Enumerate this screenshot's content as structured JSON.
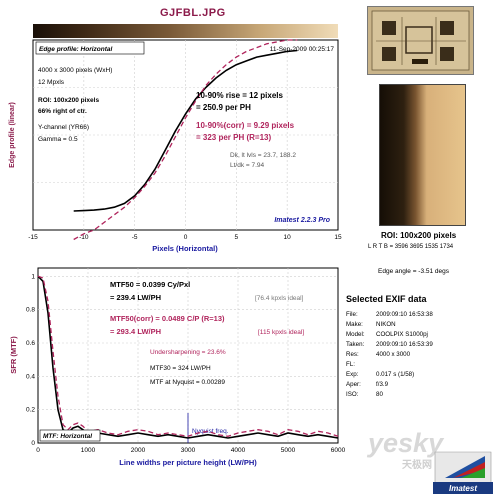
{
  "header": {
    "title": "GJFBL.JPG"
  },
  "edge_panel": {
    "box_title": "Edge profile: Horizontal",
    "timestamp": "11-Sep-2009 00:25:17",
    "image_size": "4000 x 3000 pixels (WxH)",
    "mpxls": "12 Mpxls",
    "roi": "ROI: 100x200 pixels",
    "ctr": "66% right of ctr.",
    "channel": "Y-channel (YR66)",
    "gamma": "Gamma = 0.5",
    "rise_line1": "10-90% rise = 12 pixels",
    "rise_line2": "= 250.9 per PH",
    "corr_line1": "10-90%(corr) = 9.29 pixels",
    "corr_line2": "= 323 per PH  (R=13)",
    "dk": "Dk, lt lvls = 23.7, 188.2",
    "ltdk": "Lt/dk = 7.94",
    "version": "Imatest 2.2.3 Pro",
    "ylabel": "Edge profile (linear)",
    "xlabel": "Pixels (Horizontal)",
    "xticks": [
      "-15",
      "-10",
      "-5",
      "0",
      "5",
      "10",
      "15"
    ]
  },
  "mtf_panel": {
    "mtf50_line1": "MTF50 = 0.0399 Cy/Pxl",
    "mtf50_line2": "= 239.4 LW/PH",
    "mtf50_ideal": "[76.4 kpxls ideal]",
    "mtf50c_line1": "MTF50(corr) = 0.0489 C/P  (R=13)",
    "mtf50c_line2": "= 293.4 LW/PH",
    "mtf50c_ideal": "[115 kpxls ideal]",
    "undersharp": "Undersharpening = 23.6%",
    "mtf30": "MTF30 = 324 LW/PH",
    "nyq_mtf": "MTF at Nyquist = 0.00289",
    "nyq_label": "Nyquist freq.",
    "box_label": "MTF: Horizontal",
    "ylabel": "SFR (MTF)",
    "xlabel": "Line widths per picture height (LW/PH)",
    "xticks": [
      "0",
      "1000",
      "2000",
      "3000",
      "4000",
      "5000",
      "6000"
    ],
    "yticks": [
      "1",
      "0.8",
      "0.6",
      "0.4",
      "0.2",
      "0"
    ]
  },
  "roi_info": {
    "title": "ROI: 100x200 pixels",
    "lrtb": "L R T B = 3596 3695 1535 1734",
    "edge_angle": "Edge angle = -3.51 degs"
  },
  "exif": {
    "title": "Selected EXIF data",
    "rows": [
      {
        "k": "File:",
        "v": "2009:09:10 16:53:38"
      },
      {
        "k": "Make:",
        "v": "NIKON"
      },
      {
        "k": "Model:",
        "v": "COOLPIX S1000pj"
      },
      {
        "k": "Taken:",
        "v": "2009:09:10 16:53:39"
      },
      {
        "k": "Res:",
        "v": "4000 x 3000"
      },
      {
        "k": "FL:",
        "v": ""
      },
      {
        "k": "Exp:",
        "v": "0.017 s   (1/58)"
      },
      {
        "k": "Aper:",
        "v": "f/3.9"
      },
      {
        "k": "ISO:",
        "v": "80"
      }
    ]
  },
  "watermark": {
    "text": "yesky",
    "sub": "天极网",
    "logo_text": "Imatest"
  },
  "colors": {
    "title": "#8b1a4a",
    "corr": "#b0245c",
    "blue": "#1a1aa0"
  },
  "chart_data": [
    {
      "type": "line",
      "title": "Edge profile: Horizontal",
      "xlabel": "Pixels (Horizontal)",
      "ylabel": "Edge profile (linear)",
      "xlim": [
        -15,
        15
      ],
      "ylim": [
        0,
        1
      ],
      "grid": true,
      "series": [
        {
          "name": "",
          "x": [
            -11,
            -10,
            -9,
            -8,
            -7,
            -6,
            -5,
            -4,
            -3,
            -2,
            -1,
            0,
            1,
            2,
            3,
            4,
            5,
            6,
            7,
            8,
            9,
            10,
            11
          ],
          "y": [
            0.1,
            0.102,
            0.105,
            0.11,
            0.12,
            0.14,
            0.18,
            0.24,
            0.32,
            0.42,
            0.52,
            0.61,
            0.69,
            0.75,
            0.8,
            0.84,
            0.87,
            0.89,
            0.91,
            0.92,
            0.93,
            0.94,
            0.945
          ]
        },
        {
          "name": "",
          "x": [
            -11,
            -10,
            -9,
            -8,
            -7,
            -6,
            -5,
            -4,
            -3,
            -2,
            -1,
            0,
            1,
            2,
            3,
            4,
            5,
            6,
            7,
            8,
            9,
            10,
            11
          ],
          "y": [
            -0.05,
            -0.02,
            0.0,
            0.04,
            0.08,
            0.12,
            0.17,
            0.23,
            0.3,
            0.39,
            0.49,
            0.59,
            0.68,
            0.76,
            0.82,
            0.87,
            0.91,
            0.94,
            0.96,
            0.98,
            0.99,
            1.0,
            1.0
          ]
        }
      ]
    },
    {
      "type": "line",
      "title": "MTF: Horizontal",
      "xlabel": "Line widths per picture height (LW/PH)",
      "ylabel": "SFR (MTF)",
      "xlim": [
        0,
        6000
      ],
      "ylim": [
        0,
        1.05
      ],
      "grid": true,
      "series": [
        {
          "name": "",
          "x": [
            0,
            100,
            200,
            300,
            400,
            500,
            600,
            700,
            800,
            900,
            1000,
            1200,
            1400,
            1600,
            1800,
            2000,
            2200,
            2400,
            2600,
            2800,
            3000,
            3200,
            3400,
            3600,
            3800,
            4000,
            4200,
            4400,
            4600,
            4800,
            5000,
            5200,
            5400,
            5600,
            5800,
            6000
          ],
          "y": [
            1.0,
            0.97,
            0.78,
            0.45,
            0.2,
            0.08,
            0.06,
            0.09,
            0.1,
            0.08,
            0.05,
            0.06,
            0.05,
            0.04,
            0.05,
            0.06,
            0.05,
            0.04,
            0.05,
            0.04,
            0.03,
            0.04,
            0.05,
            0.04,
            0.03,
            0.04,
            0.05,
            0.06,
            0.05,
            0.04,
            0.06,
            0.05,
            0.04,
            0.05,
            0.04,
            0.03
          ]
        },
        {
          "name": "",
          "x": [
            0,
            100,
            200,
            300,
            400,
            500,
            600,
            700,
            800,
            900,
            1000,
            1200,
            1400,
            1600,
            1800,
            2000,
            2200,
            2400,
            2600,
            2800,
            3000,
            3200,
            3400,
            3600,
            3800,
            4000,
            4200,
            4400,
            4600,
            4800,
            5000,
            5200,
            5400,
            5600,
            5800,
            6000
          ],
          "y": [
            1.0,
            0.99,
            0.85,
            0.55,
            0.28,
            0.11,
            0.08,
            0.11,
            0.12,
            0.1,
            0.07,
            0.08,
            0.06,
            0.05,
            0.07,
            0.08,
            0.07,
            0.05,
            0.06,
            0.05,
            0.04,
            0.06,
            0.07,
            0.05,
            0.04,
            0.06,
            0.07,
            0.08,
            0.07,
            0.05,
            0.08,
            0.07,
            0.05,
            0.07,
            0.06,
            0.04
          ]
        }
      ]
    }
  ]
}
